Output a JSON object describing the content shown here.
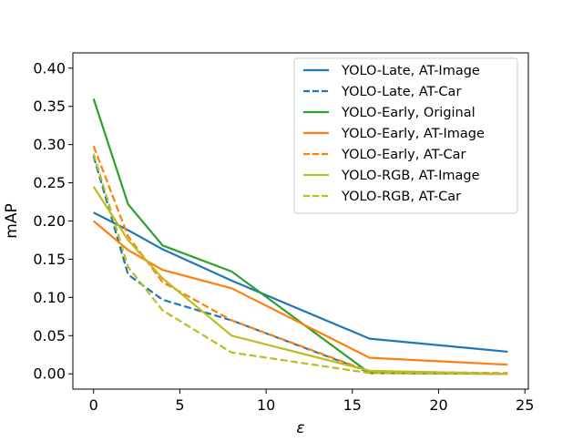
{
  "chart_data": {
    "type": "line",
    "title": "",
    "xlabel": "ε",
    "ylabel": "mAP",
    "xlim": [
      -1.2,
      25.2
    ],
    "ylim": [
      -0.02,
      0.42
    ],
    "xticks": [
      0,
      5,
      10,
      15,
      20,
      25
    ],
    "yticks": [
      0.0,
      0.05,
      0.1,
      0.15,
      0.2,
      0.25,
      0.3,
      0.35,
      0.4
    ],
    "xtick_labels": [
      "0",
      "5",
      "10",
      "15",
      "20",
      "25"
    ],
    "ytick_labels": [
      "0.00",
      "0.05",
      "0.10",
      "0.15",
      "0.20",
      "0.25",
      "0.30",
      "0.35",
      "0.40"
    ],
    "grid": false,
    "legend_position": "top-right",
    "series": [
      {
        "name": "YOLO-Late, AT-Image",
        "color": "#1f77b4",
        "dash": "solid",
        "x": [
          0,
          2,
          4,
          8,
          16,
          24
        ],
        "y": [
          0.211,
          0.188,
          0.163,
          0.122,
          0.046,
          0.029
        ]
      },
      {
        "name": "YOLO-Late, AT-Car",
        "color": "#1f77b4",
        "dash": "dashed",
        "x": [
          0,
          2,
          4,
          8,
          16,
          24
        ],
        "y": [
          0.285,
          0.13,
          0.097,
          0.07,
          0.002,
          0.0
        ]
      },
      {
        "name": "YOLO-Early, Original",
        "color": "#2ca02c",
        "dash": "solid",
        "x": [
          0,
          2,
          4,
          8,
          16,
          24
        ],
        "y": [
          0.36,
          0.222,
          0.168,
          0.134,
          0.001,
          0.0
        ]
      },
      {
        "name": "YOLO-Early, AT-Image",
        "color": "#ff7f0e",
        "dash": "solid",
        "x": [
          0,
          2,
          4,
          8,
          16,
          24
        ],
        "y": [
          0.2,
          0.162,
          0.136,
          0.112,
          0.021,
          0.012
        ]
      },
      {
        "name": "YOLO-Early, AT-Car",
        "color": "#ff7f0e",
        "dash": "dashed",
        "x": [
          0,
          2,
          4,
          8,
          16,
          24
        ],
        "y": [
          0.298,
          0.18,
          0.12,
          0.07,
          0.003,
          0.001
        ]
      },
      {
        "name": "YOLO-RGB, AT-Image",
        "color": "#bcbd22",
        "dash": "solid",
        "x": [
          0,
          2,
          4,
          8,
          16,
          24
        ],
        "y": [
          0.245,
          0.175,
          0.125,
          0.05,
          0.004,
          0.0
        ]
      },
      {
        "name": "YOLO-RGB, AT-Car",
        "color": "#bcbd22",
        "dash": "dashed",
        "x": [
          0,
          2,
          4,
          8,
          16,
          24
        ],
        "y": [
          0.288,
          0.14,
          0.083,
          0.028,
          0.001,
          0.0
        ]
      }
    ]
  }
}
